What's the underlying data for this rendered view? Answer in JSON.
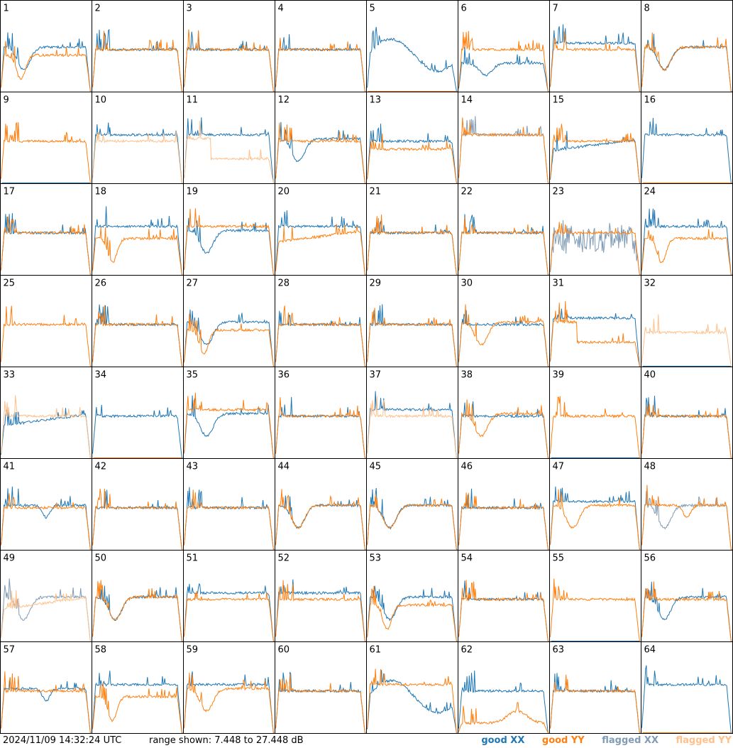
{
  "footer": {
    "timestamp": "2024/11/09 14:32:24 UTC",
    "range_text": "range shown: 7.448 to 27.448 dB"
  },
  "legend": [
    {
      "label": "good XX",
      "color": "#1f77b4"
    },
    {
      "label": "good YY",
      "color": "#ff7f0e"
    },
    {
      "label": "flagged XX",
      "color": "#7f9bb5"
    },
    {
      "label": "flagged YY",
      "color": "#ffc08a"
    }
  ],
  "chart_data": {
    "type": "line",
    "ylim": [
      7.448,
      27.448
    ],
    "yunit": "dB",
    "panel_count": 64,
    "panels": [
      {
        "id": 1,
        "xx": "dipA",
        "yy": "dipB",
        "xx_flag": false,
        "yy_flag": false
      },
      {
        "id": 2,
        "xx": "flat",
        "yy": "flat",
        "xx_flag": false,
        "yy_flag": false
      },
      {
        "id": 3,
        "xx": "flat",
        "yy": "flat",
        "xx_flag": false,
        "yy_flag": false
      },
      {
        "id": 4,
        "xx": "flat",
        "yy": "flat",
        "xx_flag": false,
        "yy_flag": false
      },
      {
        "id": 5,
        "xx": "wave",
        "yy": "dead",
        "xx_flag": false,
        "yy_flag": false
      },
      {
        "id": 6,
        "xx": "noisyDip",
        "yy": "flat",
        "xx_flag": false,
        "yy_flag": false
      },
      {
        "id": 7,
        "xx": "flatHigh",
        "yy": "flat",
        "xx_flag": false,
        "yy_flag": false
      },
      {
        "id": 8,
        "xx": "dipA",
        "yy": "dipA",
        "xx_flag": false,
        "yy_flag": false
      },
      {
        "id": 9,
        "xx": "dead",
        "yy": "flat",
        "xx_flag": false,
        "yy_flag": false
      },
      {
        "id": 10,
        "xx": "flatHigh",
        "yy": "flat",
        "xx_flag": false,
        "yy_flag": true
      },
      {
        "id": 11,
        "xx": "flatHigh",
        "yy": "lowStep",
        "xx_flag": false,
        "yy_flag": true
      },
      {
        "id": 12,
        "xx": "dipA",
        "yy": "flat",
        "xx_flag": false,
        "yy_flag": false
      },
      {
        "id": 13,
        "xx": "flat",
        "yy": "flatLow",
        "xx_flag": false,
        "yy_flag": false
      },
      {
        "id": 14,
        "xx": "flatHigh",
        "yy": "flatHigh",
        "xx_flag": true,
        "yy_flag": false
      },
      {
        "id": 15,
        "xx": "rising",
        "yy": "flat",
        "xx_flag": false,
        "yy_flag": false
      },
      {
        "id": 16,
        "xx": "flatHigh",
        "yy": "dead",
        "xx_flag": false,
        "yy_flag": false
      },
      {
        "id": 17,
        "xx": "flat",
        "yy": "flat",
        "xx_flag": false,
        "yy_flag": false
      },
      {
        "id": 18,
        "xx": "flatHigh",
        "yy": "dipB",
        "xx_flag": false,
        "yy_flag": false
      },
      {
        "id": 19,
        "xx": "dipA",
        "yy": "flatHigh",
        "xx_flag": false,
        "yy_flag": false
      },
      {
        "id": 20,
        "xx": "flatHigh",
        "yy": "rising",
        "xx_flag": false,
        "yy_flag": false
      },
      {
        "id": 21,
        "xx": "flat",
        "yy": "flat",
        "xx_flag": false,
        "yy_flag": false
      },
      {
        "id": 22,
        "xx": "flat",
        "yy": "flat",
        "xx_flag": false,
        "yy_flag": false
      },
      {
        "id": 23,
        "xx": "noisy",
        "yy": "flat",
        "xx_flag": true,
        "yy_flag": false
      },
      {
        "id": 24,
        "xx": "flatHigh",
        "yy": "dipB",
        "xx_flag": false,
        "yy_flag": false
      },
      {
        "id": 25,
        "xx": "none",
        "yy": "flat",
        "xx_flag": false,
        "yy_flag": false
      },
      {
        "id": 26,
        "xx": "flat",
        "yy": "flat",
        "xx_flag": false,
        "yy_flag": false
      },
      {
        "id": 27,
        "xx": "dipA",
        "yy": "dipB",
        "xx_flag": false,
        "yy_flag": false
      },
      {
        "id": 28,
        "xx": "flat",
        "yy": "flat",
        "xx_flag": false,
        "yy_flag": false
      },
      {
        "id": 29,
        "xx": "flat",
        "yy": "flat",
        "xx_flag": false,
        "yy_flag": false
      },
      {
        "id": 30,
        "xx": "flat",
        "yy": "dipA",
        "xx_flag": false,
        "yy_flag": false
      },
      {
        "id": 31,
        "xx": "flatHigh",
        "yy": "lowStep",
        "xx_flag": false,
        "yy_flag": false
      },
      {
        "id": 32,
        "xx": "dead",
        "yy": "flatLow",
        "xx_flag": false,
        "yy_flag": true
      },
      {
        "id": 33,
        "xx": "rising",
        "yy": "flat",
        "xx_flag": false,
        "yy_flag": true
      },
      {
        "id": 34,
        "xx": "flat",
        "yy": "dead",
        "xx_flag": false,
        "yy_flag": false
      },
      {
        "id": 35,
        "xx": "dipA",
        "yy": "flatHigh",
        "xx_flag": false,
        "yy_flag": false
      },
      {
        "id": 36,
        "xx": "flat",
        "yy": "flat",
        "xx_flag": false,
        "yy_flag": false
      },
      {
        "id": 37,
        "xx": "flatHigh",
        "yy": "flat",
        "xx_flag": false,
        "yy_flag": true
      },
      {
        "id": 38,
        "xx": "flat",
        "yy": "dipA",
        "xx_flag": false,
        "yy_flag": false
      },
      {
        "id": 39,
        "xx": "dead",
        "yy": "flat",
        "xx_flag": false,
        "yy_flag": false
      },
      {
        "id": 40,
        "xx": "flat",
        "yy": "flat",
        "xx_flag": false,
        "yy_flag": false
      },
      {
        "id": 41,
        "xx": "dipC",
        "yy": "flat",
        "xx_flag": false,
        "yy_flag": false
      },
      {
        "id": 42,
        "xx": "flat",
        "yy": "flat",
        "xx_flag": false,
        "yy_flag": false
      },
      {
        "id": 43,
        "xx": "flat",
        "yy": "flat",
        "xx_flag": false,
        "yy_flag": false
      },
      {
        "id": 44,
        "xx": "dipA",
        "yy": "dipA",
        "xx_flag": false,
        "yy_flag": false
      },
      {
        "id": 45,
        "xx": "dipA",
        "yy": "dipA",
        "xx_flag": false,
        "yy_flag": false
      },
      {
        "id": 46,
        "xx": "flat",
        "yy": "flat",
        "xx_flag": false,
        "yy_flag": false
      },
      {
        "id": 47,
        "xx": "flatHigh",
        "yy": "dipA",
        "xx_flag": false,
        "yy_flag": false
      },
      {
        "id": 48,
        "xx": "dipA",
        "yy": "dipC",
        "xx_flag": true,
        "yy_flag": false
      },
      {
        "id": 49,
        "xx": "dipA",
        "yy": "rising",
        "xx_flag": true,
        "yy_flag": true
      },
      {
        "id": 50,
        "xx": "dipA",
        "yy": "dipA",
        "xx_flag": false,
        "yy_flag": false
      },
      {
        "id": 51,
        "xx": "flatHigh",
        "yy": "flat",
        "xx_flag": false,
        "yy_flag": false
      },
      {
        "id": 52,
        "xx": "flatHigh",
        "yy": "flat",
        "xx_flag": false,
        "yy_flag": false
      },
      {
        "id": 53,
        "xx": "dipA",
        "yy": "dipB",
        "xx_flag": false,
        "yy_flag": false
      },
      {
        "id": 54,
        "xx": "flat",
        "yy": "flat",
        "xx_flag": false,
        "yy_flag": false
      },
      {
        "id": 55,
        "xx": "dead",
        "yy": "flat",
        "xx_flag": false,
        "yy_flag": false
      },
      {
        "id": 56,
        "xx": "dipA",
        "yy": "flat",
        "xx_flag": false,
        "yy_flag": false
      },
      {
        "id": 57,
        "xx": "dipC",
        "yy": "flat",
        "xx_flag": false,
        "yy_flag": false
      },
      {
        "id": 58,
        "xx": "flatHigh",
        "yy": "dipB",
        "xx_flag": false,
        "yy_flag": false
      },
      {
        "id": 59,
        "xx": "flatHigh",
        "yy": "dipA",
        "xx_flag": false,
        "yy_flag": false
      },
      {
        "id": 60,
        "xx": "flat",
        "yy": "flat",
        "xx_flag": false,
        "yy_flag": false
      },
      {
        "id": 61,
        "xx": "wave",
        "yy": "flatHigh",
        "xx_flag": false,
        "yy_flag": false
      },
      {
        "id": 62,
        "xx": "flat",
        "yy": "lowBump",
        "xx_flag": false,
        "yy_flag": false
      },
      {
        "id": 63,
        "xx": "flat",
        "yy": "flat",
        "xx_flag": false,
        "yy_flag": false
      },
      {
        "id": 64,
        "xx": "flatHigh",
        "yy": "dead",
        "xx_flag": false,
        "yy_flag": false
      }
    ]
  }
}
